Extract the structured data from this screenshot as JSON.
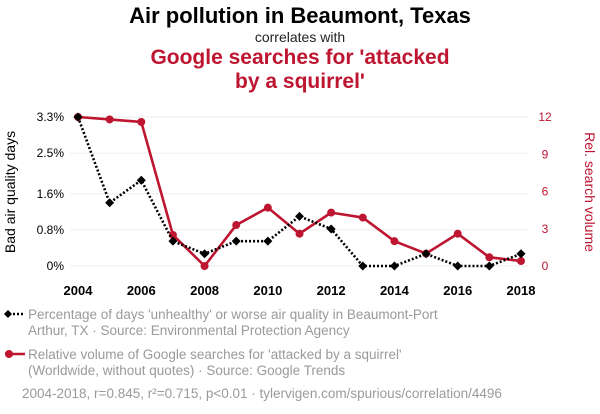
{
  "header": {
    "title": "Air pollution in Beaumont, Texas",
    "subtitle": "correlates with",
    "title2_line1": "Google searches for 'attacked",
    "title2_line2": "by a squirrel'"
  },
  "colors": {
    "series1": "#000000",
    "series2": "#be1530",
    "grid": "#eeeeee",
    "muted": "#9a9a9a"
  },
  "chart_data": {
    "type": "line",
    "x": [
      2004,
      2005,
      2006,
      2007,
      2008,
      2009,
      2010,
      2011,
      2012,
      2013,
      2014,
      2015,
      2016,
      2017,
      2018
    ],
    "x_ticks": [
      2004,
      2006,
      2008,
      2010,
      2012,
      2014,
      2016,
      2018
    ],
    "x_tick_labels": [
      "2004",
      "2006",
      "2008",
      "2010",
      "2012",
      "2014",
      "2016",
      "2018"
    ],
    "ylabel_left": "Bad air quality days",
    "ylabel_right": "Rel. search volume",
    "left_axis": {
      "ylim": [
        0,
        3.3
      ],
      "ticks": [
        0,
        0.8,
        1.6,
        2.5,
        3.3
      ],
      "tick_labels": [
        "0%",
        "0.8%",
        "1.6%",
        "2.5%",
        "3.3%"
      ]
    },
    "right_axis": {
      "ylim": [
        0,
        12
      ],
      "ticks": [
        0,
        3,
        6,
        9,
        12
      ],
      "tick_labels": [
        "0",
        "3",
        "6",
        "9",
        "12"
      ]
    },
    "series": [
      {
        "name": "Percentage of days 'unhealthy' or worse air quality in Beaumont-Port Arthur, TX",
        "axis": "left",
        "style": "dotted-diamond",
        "values": [
          3.3,
          1.4,
          1.9,
          0.55,
          0.27,
          0.55,
          0.55,
          1.1,
          0.82,
          0.0,
          0.0,
          0.27,
          0.0,
          0.0,
          0.27
        ]
      },
      {
        "name": "Relative volume of Google searches for 'attacked by a squirrel'",
        "axis": "right",
        "style": "solid-circle",
        "values": [
          12,
          11.8,
          11.6,
          2.5,
          0,
          3.3,
          4.7,
          2.6,
          4.3,
          3.9,
          2.0,
          1.0,
          2.6,
          0.7,
          0.4
        ]
      }
    ]
  },
  "legend": {
    "item1_line1": "Percentage of days 'unhealthy' or worse air quality in Beaumont-Port",
    "item1_line2": "Arthur, TX · Source: Environmental Protection Agency",
    "item2_line1": "Relative volume of Google searches for 'attacked by a squirrel'",
    "item2_line2": "(Worldwide, without quotes) · Source: Google Trends"
  },
  "footer": "2004-2018, r=0.845, r²=0.715, p<0.01 · tylervigen.com/spurious/correlation/4496"
}
